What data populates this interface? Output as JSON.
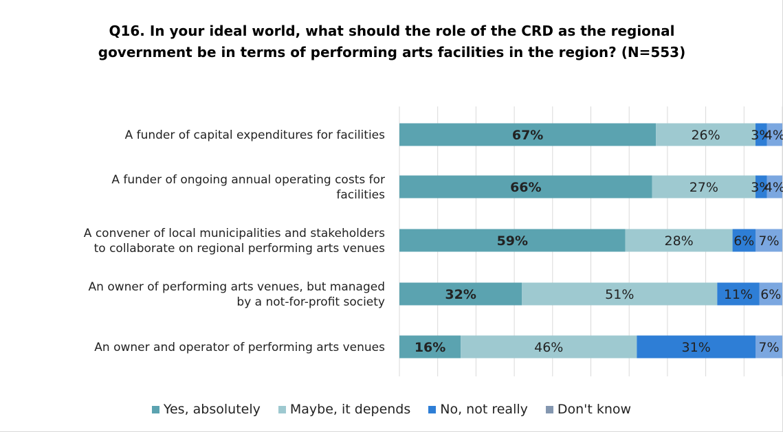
{
  "chart_data": {
    "type": "bar",
    "orientation": "horizontal",
    "stacked": true,
    "title": "Q16. In your ideal world, what should the role of the CRD as the regional government be in terms of performing arts facilities in the region? (N=553)",
    "categories": [
      "A funder of capital expenditures for facilities",
      "A funder of ongoing annual operating costs for facilities",
      "A convener of local municipalities and stakeholders to collaborate on regional performing arts venues",
      "An owner of performing arts venues, but managed by a not-for-profit society",
      "An owner and operator of performing arts venues"
    ],
    "category_lines": [
      [
        "A funder of capital expenditures for facilities"
      ],
      [
        "A funder of ongoing annual operating costs for",
        "facilities"
      ],
      [
        "A convener of local municipalities and stakeholders",
        "to collaborate on regional performing arts venues"
      ],
      [
        "An owner of performing arts venues, but managed",
        "by a not-for-profit society"
      ],
      [
        "An owner and operator of performing arts venues"
      ]
    ],
    "series": [
      {
        "name": "Yes, absolutely",
        "color": "#5ba3b0",
        "values": [
          67,
          66,
          59,
          32,
          16
        ],
        "labels": [
          "67%",
          "66%",
          "59%",
          "32%",
          "16%"
        ],
        "bold": true
      },
      {
        "name": "Maybe, it depends",
        "color": "#9ec9d0",
        "values": [
          26,
          27,
          28,
          51,
          46
        ],
        "labels": [
          "26%",
          "27%",
          "28%",
          "51%",
          "46%"
        ],
        "bold": false
      },
      {
        "name": "No, not really",
        "color": "#2e7ed6",
        "values": [
          3,
          3,
          6,
          11,
          31
        ],
        "labels": [
          "3%",
          "3%",
          "6%",
          "11%",
          "31%"
        ],
        "bold": false
      },
      {
        "name": "Don't know",
        "color": "#7ba7e0",
        "legend_color": "#8497b0",
        "values": [
          4,
          4,
          7,
          6,
          7
        ],
        "labels": [
          "4%",
          "4%",
          "7%",
          "6%",
          "7%"
        ],
        "bold": false
      }
    ],
    "xlim": [
      0,
      100
    ],
    "grid": true,
    "legend_position": "bottom"
  }
}
